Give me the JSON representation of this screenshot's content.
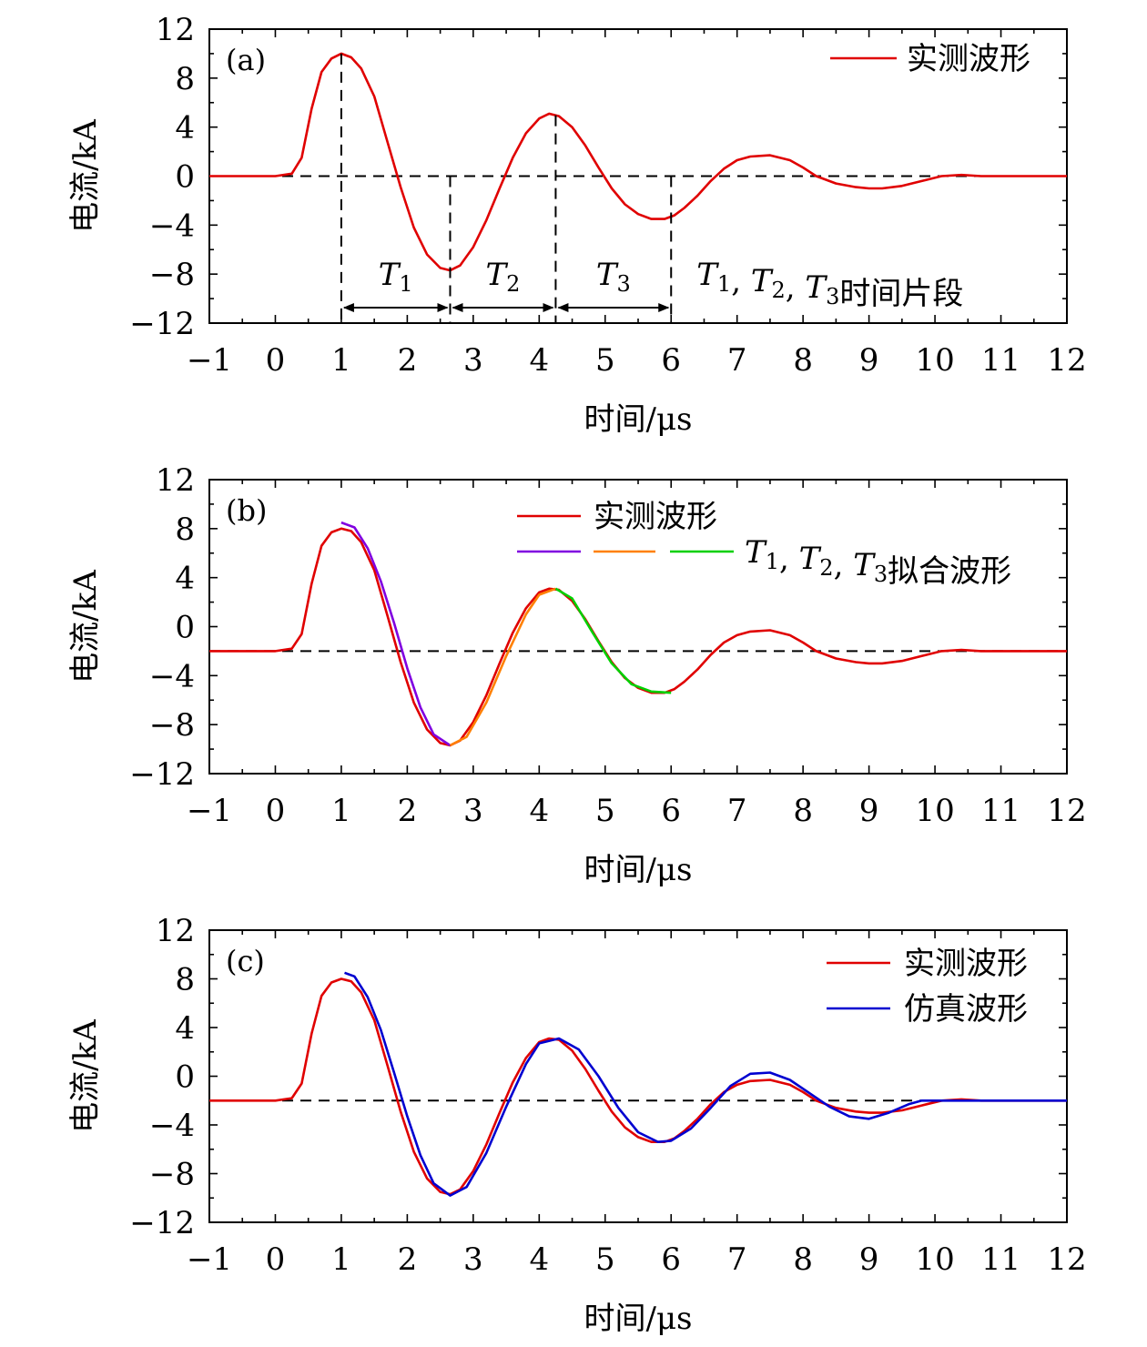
{
  "chart_data": [
    {
      "type": "line",
      "panel": "(a)",
      "xlabel": "时间/μs",
      "ylabel": "电流/kA",
      "xlim": [
        -1,
        12
      ],
      "ylim": [
        -12,
        12
      ],
      "xticks": [
        -1,
        0,
        1,
        2,
        3,
        4,
        5,
        6,
        7,
        8,
        9,
        10,
        11,
        12
      ],
      "yticks": [
        12,
        8,
        4,
        0,
        -4,
        -8,
        -12
      ],
      "legend_position": "top-right",
      "baseline": 0,
      "series": [
        {
          "name": "实测波形",
          "color": "#e00000",
          "x": [
            -1,
            0,
            0.25,
            0.4,
            0.55,
            0.7,
            0.85,
            1.0,
            1.15,
            1.3,
            1.5,
            1.7,
            1.9,
            2.1,
            2.3,
            2.5,
            2.65,
            2.8,
            3.0,
            3.2,
            3.4,
            3.6,
            3.8,
            4.0,
            4.15,
            4.3,
            4.5,
            4.7,
            4.9,
            5.1,
            5.3,
            5.5,
            5.7,
            5.9,
            6.05,
            6.2,
            6.4,
            6.6,
            6.8,
            7.0,
            7.2,
            7.5,
            7.8,
            8.0,
            8.2,
            8.5,
            8.8,
            9.0,
            9.2,
            9.5,
            9.8,
            10.1,
            10.4,
            10.7,
            11,
            12
          ],
          "y": [
            0,
            0,
            0.2,
            1.5,
            5.5,
            8.5,
            9.6,
            10.0,
            9.7,
            8.8,
            6.5,
            2.8,
            -0.9,
            -4.2,
            -6.4,
            -7.5,
            -7.7,
            -7.3,
            -5.8,
            -3.6,
            -1.0,
            1.5,
            3.5,
            4.7,
            5.1,
            4.9,
            4.0,
            2.5,
            0.7,
            -1.0,
            -2.3,
            -3.1,
            -3.5,
            -3.5,
            -3.2,
            -2.6,
            -1.6,
            -0.4,
            0.6,
            1.3,
            1.6,
            1.7,
            1.3,
            0.7,
            0.0,
            -0.6,
            -0.9,
            -1.0,
            -1.0,
            -0.8,
            -0.4,
            0.0,
            0.1,
            0.0,
            0,
            0
          ]
        }
      ],
      "annotations": {
        "segments": [
          "T1",
          "T2",
          "T3"
        ],
        "segment_boundaries": [
          1.0,
          2.65,
          4.25,
          6.0
        ],
        "note": "T1, T2, T3时间片段"
      }
    },
    {
      "type": "line",
      "panel": "(b)",
      "xlabel": "时间/μs",
      "ylabel": "电流/kA",
      "xlim": [
        -1,
        12
      ],
      "ylim": [
        -12,
        12
      ],
      "xticks": [
        -1,
        0,
        1,
        2,
        3,
        4,
        5,
        6,
        7,
        8,
        9,
        10,
        11,
        12
      ],
      "yticks": [
        12,
        8,
        4,
        0,
        -4,
        -8,
        -12
      ],
      "legend_position": "top-right",
      "baseline": -2,
      "series": [
        {
          "name": "实测波形",
          "color": "#e00000",
          "x": [
            -1,
            0,
            0.25,
            0.4,
            0.55,
            0.7,
            0.85,
            1.0,
            1.15,
            1.3,
            1.5,
            1.7,
            1.9,
            2.1,
            2.3,
            2.5,
            2.65,
            2.8,
            3.0,
            3.2,
            3.4,
            3.6,
            3.8,
            4.0,
            4.15,
            4.3,
            4.5,
            4.7,
            4.9,
            5.1,
            5.3,
            5.5,
            5.7,
            5.9,
            6.05,
            6.2,
            6.4,
            6.6,
            6.8,
            7.0,
            7.2,
            7.5,
            7.8,
            8.0,
            8.2,
            8.5,
            8.8,
            9.0,
            9.2,
            9.5,
            9.8,
            10.1,
            10.4,
            10.7,
            11,
            12
          ],
          "y": [
            -2,
            -2,
            -1.8,
            -0.6,
            3.5,
            6.6,
            7.7,
            8.0,
            7.8,
            6.9,
            4.6,
            0.9,
            -2.9,
            -6.2,
            -8.4,
            -9.5,
            -9.7,
            -9.3,
            -7.8,
            -5.6,
            -3.0,
            -0.5,
            1.5,
            2.8,
            3.1,
            3.0,
            2.1,
            0.6,
            -1.2,
            -2.9,
            -4.2,
            -5.0,
            -5.4,
            -5.4,
            -5.1,
            -4.5,
            -3.5,
            -2.3,
            -1.3,
            -0.7,
            -0.4,
            -0.3,
            -0.7,
            -1.3,
            -2.0,
            -2.6,
            -2.9,
            -3.0,
            -3.0,
            -2.8,
            -2.4,
            -2.0,
            -1.9,
            -2.0,
            -2,
            -2
          ]
        },
        {
          "name": "T1, T2, T3拟合波形",
          "color": "#8000e0",
          "x": [
            1.0,
            1.2,
            1.4,
            1.6,
            1.8,
            2.0,
            2.2,
            2.4,
            2.65
          ],
          "y": [
            8.5,
            8.1,
            6.4,
            3.7,
            0.3,
            -3.4,
            -6.6,
            -8.8,
            -9.7
          ]
        },
        {
          "name": "",
          "color": "#ff8000",
          "x": [
            2.65,
            2.9,
            3.2,
            3.5,
            3.8,
            4.0,
            4.25
          ],
          "y": [
            -9.7,
            -9.0,
            -6.2,
            -2.4,
            1.0,
            2.6,
            3.1
          ]
        },
        {
          "name": "",
          "color": "#00d000",
          "x": [
            4.25,
            4.5,
            4.8,
            5.1,
            5.4,
            5.7,
            6.0
          ],
          "y": [
            3.1,
            2.3,
            -0.4,
            -3.0,
            -4.7,
            -5.3,
            -5.4
          ]
        }
      ],
      "legend_segments_colors": [
        "#8000e0",
        "#ff8000",
        "#00d000"
      ]
    },
    {
      "type": "line",
      "panel": "(c)",
      "xlabel": "时间/μs",
      "ylabel": "电流/kA",
      "xlim": [
        -1,
        12
      ],
      "ylim": [
        -12,
        12
      ],
      "xticks": [
        -1,
        0,
        1,
        2,
        3,
        4,
        5,
        6,
        7,
        8,
        9,
        10,
        11,
        12
      ],
      "yticks": [
        12,
        8,
        4,
        0,
        -4,
        -8,
        -12
      ],
      "legend_position": "top-right",
      "baseline": -2,
      "series": [
        {
          "name": "实测波形",
          "color": "#e00000",
          "x": [
            -1,
            0,
            0.25,
            0.4,
            0.55,
            0.7,
            0.85,
            1.0,
            1.15,
            1.3,
            1.5,
            1.7,
            1.9,
            2.1,
            2.3,
            2.5,
            2.65,
            2.8,
            3.0,
            3.2,
            3.4,
            3.6,
            3.8,
            4.0,
            4.15,
            4.3,
            4.5,
            4.7,
            4.9,
            5.1,
            5.3,
            5.5,
            5.7,
            5.9,
            6.05,
            6.2,
            6.4,
            6.6,
            6.8,
            7.0,
            7.2,
            7.5,
            7.8,
            8.0,
            8.2,
            8.5,
            8.8,
            9.0,
            9.2,
            9.5,
            9.8,
            10.1,
            10.4,
            10.7,
            11,
            12
          ],
          "y": [
            -2,
            -2,
            -1.8,
            -0.6,
            3.5,
            6.6,
            7.7,
            8.0,
            7.8,
            6.9,
            4.6,
            0.9,
            -2.9,
            -6.2,
            -8.4,
            -9.5,
            -9.7,
            -9.3,
            -7.8,
            -5.6,
            -3.0,
            -0.5,
            1.5,
            2.8,
            3.1,
            3.0,
            2.1,
            0.6,
            -1.2,
            -2.9,
            -4.2,
            -5.0,
            -5.4,
            -5.4,
            -5.1,
            -4.5,
            -3.5,
            -2.3,
            -1.3,
            -0.7,
            -0.4,
            -0.3,
            -0.7,
            -1.3,
            -2.0,
            -2.6,
            -2.9,
            -3.0,
            -3.0,
            -2.8,
            -2.4,
            -2.0,
            -1.9,
            -2.0,
            -2,
            -2
          ]
        },
        {
          "name": "仿真波形",
          "color": "#0000d0",
          "x": [
            1.05,
            1.2,
            1.4,
            1.6,
            1.8,
            2.0,
            2.2,
            2.4,
            2.65,
            2.9,
            3.2,
            3.5,
            3.8,
            4.0,
            4.3,
            4.6,
            4.9,
            5.2,
            5.5,
            5.8,
            6.0,
            6.3,
            6.6,
            6.9,
            7.2,
            7.5,
            7.8,
            8.1,
            8.4,
            8.7,
            9.0,
            9.3,
            9.6,
            9.8,
            10.0,
            10.3,
            10.7,
            11,
            12
          ],
          "y": [
            8.5,
            8.2,
            6.5,
            3.8,
            0.3,
            -3.3,
            -6.5,
            -8.8,
            -9.8,
            -9.1,
            -6.3,
            -2.5,
            1.0,
            2.7,
            3.1,
            2.2,
            0.0,
            -2.6,
            -4.6,
            -5.4,
            -5.3,
            -4.3,
            -2.6,
            -0.8,
            0.2,
            0.3,
            -0.3,
            -1.4,
            -2.5,
            -3.3,
            -3.5,
            -3.0,
            -2.3,
            -2.0,
            -2.0,
            -2.0,
            -2.0,
            -2,
            -2
          ]
        }
      ]
    }
  ]
}
